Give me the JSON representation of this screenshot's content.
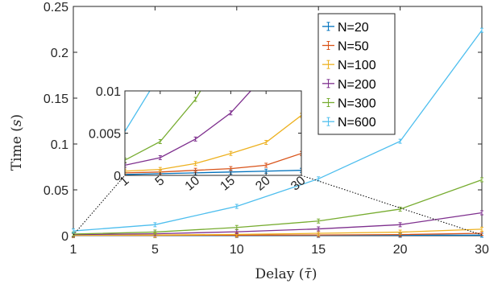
{
  "chart_data": {
    "type": "line",
    "x": [
      1,
      5,
      10,
      15,
      20,
      30
    ],
    "xticklabels": [
      "1",
      "5",
      "10",
      "15",
      "20",
      "30"
    ],
    "xlabel": "Delay (τ̄)",
    "ylabel": "Time (s)",
    "ylim": [
      0,
      0.25
    ],
    "yticks": [
      0,
      0.05,
      0.1,
      0.15,
      0.2,
      0.25
    ],
    "yticklabels": [
      "0",
      "0.05",
      "0.1",
      "0.15",
      "0.2",
      "0.25"
    ],
    "legend_position": "top-right",
    "grid": false,
    "series": [
      {
        "name": "N=20",
        "color": "#0072BD",
        "values": [
          0.0001,
          0.0002,
          0.0003,
          0.0004,
          0.0005,
          0.0006
        ]
      },
      {
        "name": "N=50",
        "color": "#D95319",
        "values": [
          0.0003,
          0.0004,
          0.0006,
          0.0008,
          0.0012,
          0.0026
        ]
      },
      {
        "name": "N=100",
        "color": "#EDB120",
        "values": [
          0.0005,
          0.0007,
          0.0014,
          0.0026,
          0.0039,
          0.0071
        ]
      },
      {
        "name": "N=200",
        "color": "#7E2F8E",
        "values": [
          0.0012,
          0.0021,
          0.0043,
          0.0074,
          0.012,
          0.025
        ]
      },
      {
        "name": "N=300",
        "color": "#77AC30",
        "values": [
          0.0018,
          0.004,
          0.009,
          0.016,
          0.029,
          0.061
        ]
      },
      {
        "name": "N=600",
        "color": "#4DBEEE",
        "values": [
          0.0052,
          0.012,
          0.032,
          0.062,
          0.103,
          0.224
        ]
      }
    ],
    "inset": {
      "ylim": [
        0,
        0.01
      ],
      "yticks": [
        0,
        0.005,
        0.01
      ],
      "yticklabels": [
        "0",
        "0.005",
        "0.01"
      ],
      "xticklabels": [
        "1",
        "5",
        "10",
        "15",
        "20",
        "30"
      ]
    }
  }
}
